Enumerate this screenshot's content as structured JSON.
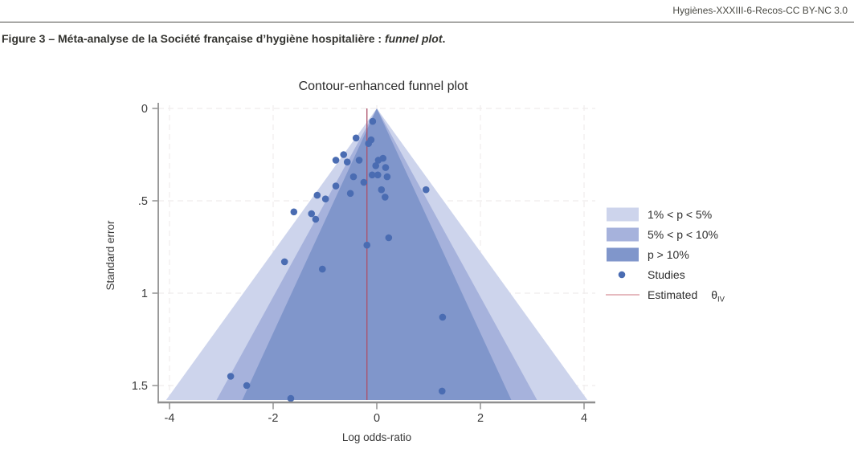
{
  "header": {
    "reference": "Hygiènes-XXXIII-6-Recos-CC BY-NC 3.0"
  },
  "caption": {
    "prefix": "Figure 3 – Méta-analyse de la Société française d’hygiène hospitalière : ",
    "italic": "funnel plot",
    "suffix": "."
  },
  "chart_data": {
    "type": "scatter",
    "subtype": "contour-enhanced funnel plot",
    "title": "Contour-enhanced funnel plot",
    "xlabel": "Log odds-ratio",
    "ylabel": "Standard error",
    "xlim": [
      -4.2,
      4.2
    ],
    "ylim_se": [
      0,
      1.578
    ],
    "y_axis_direction": "standard error increases downward",
    "grid": true,
    "x_ticks": [
      -4,
      -2,
      0,
      2,
      4
    ],
    "x_tick_labels": [
      "-4",
      "-2",
      "0",
      "2",
      "4"
    ],
    "y_ticks": [
      0,
      0.5,
      1,
      1.5
    ],
    "y_tick_labels": [
      "0",
      ".5",
      "1",
      "1.5"
    ],
    "funnel_center": 0,
    "se_max": 1.578,
    "contours": [
      {
        "label": "1% < p < 5%",
        "z": 2.576,
        "color": "#cdd4ec"
      },
      {
        "label": "5% < p < 10%",
        "z": 1.96,
        "color": "#a6b2dc"
      },
      {
        "label": "p > 10%",
        "z": 1.645,
        "color": "#8096cb"
      }
    ],
    "studies_label": "Studies",
    "studies_color": "#4a6cb2",
    "estimate": {
      "x": -0.19,
      "line_color": "#ac5068",
      "legend_line_color": "#dda4aa",
      "label_prefix": "Estimated",
      "symbol": "θ",
      "subscript": "IV"
    },
    "legend_position": "right",
    "studies": [
      [
        -0.08,
        0.07
      ],
      [
        -0.4,
        0.16
      ],
      [
        -0.11,
        0.17
      ],
      [
        -0.16,
        0.19
      ],
      [
        -0.64,
        0.25
      ],
      [
        0.12,
        0.27
      ],
      [
        -0.34,
        0.28
      ],
      [
        0.03,
        0.28
      ],
      [
        -0.79,
        0.28
      ],
      [
        -0.57,
        0.29
      ],
      [
        -0.02,
        0.31
      ],
      [
        0.17,
        0.32
      ],
      [
        -0.09,
        0.36
      ],
      [
        0.02,
        0.36
      ],
      [
        -0.45,
        0.37
      ],
      [
        0.2,
        0.37
      ],
      [
        -0.25,
        0.4
      ],
      [
        -0.79,
        0.42
      ],
      [
        0.09,
        0.44
      ],
      [
        0.95,
        0.44
      ],
      [
        -0.51,
        0.46
      ],
      [
        -1.15,
        0.47
      ],
      [
        0.16,
        0.48
      ],
      [
        -0.99,
        0.49
      ],
      [
        -1.6,
        0.56
      ],
      [
        -1.26,
        0.57
      ],
      [
        -1.18,
        0.6
      ],
      [
        0.23,
        0.7
      ],
      [
        -0.19,
        0.74
      ],
      [
        -1.78,
        0.83
      ],
      [
        -1.05,
        0.87
      ],
      [
        1.27,
        1.13
      ],
      [
        -2.82,
        1.45
      ],
      [
        -2.51,
        1.5
      ],
      [
        1.26,
        1.53
      ],
      [
        -1.66,
        1.57
      ]
    ]
  }
}
